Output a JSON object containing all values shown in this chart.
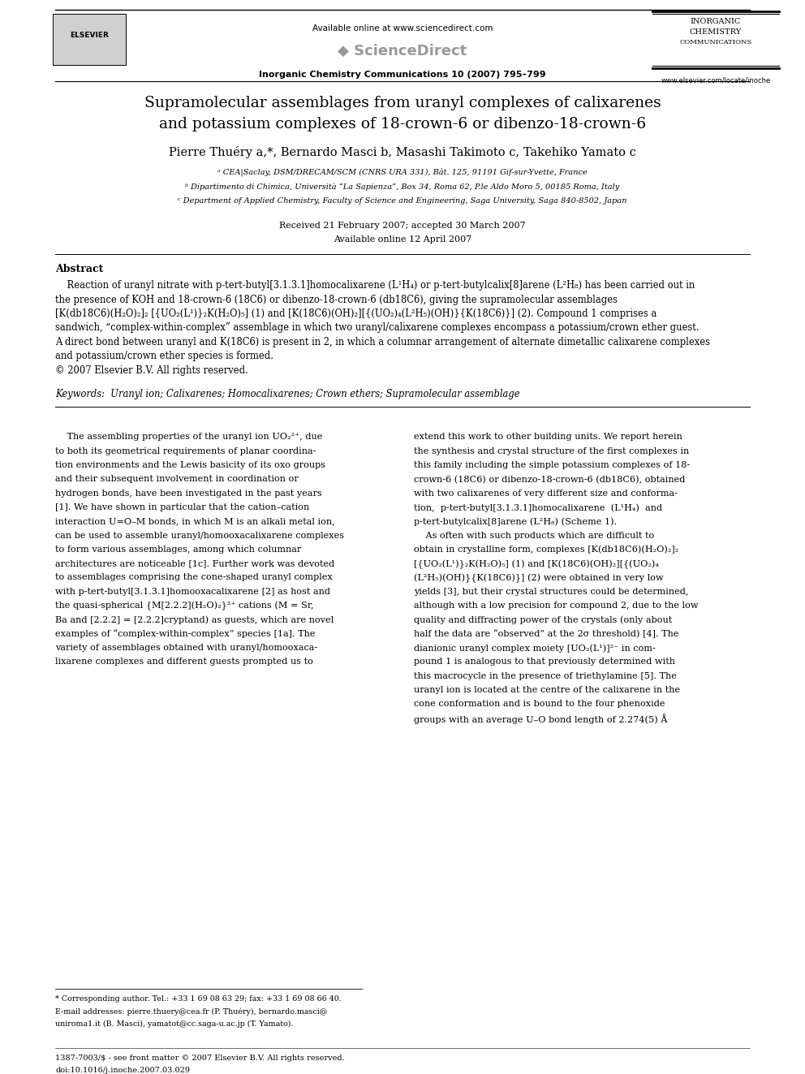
{
  "background_color": "#ffffff",
  "page_width": 9.92,
  "page_height": 13.23,
  "header": {
    "available_online_text": "Available online at www.sciencedirect.com",
    "journal_info": "Inorganic Chemistry Communications 10 (2007) 795–799",
    "journal_name_lines": [
      "INORGANIC",
      "CHEMISTRY",
      "COMMUNICATIONS"
    ],
    "website": "www.elsevier.com/locate/inoche"
  },
  "title": "Supramolecular assemblages from uranyl complexes of calixarenes\nand potassium complexes of 18-crown-6 or dibenzo-18-crown-6",
  "authors": "Pierre Thuéry a,*, Bernardo Masci b, Masashi Takimoto c, Takehiko Yamato c",
  "affiliations": [
    "ᵃ CEA|Saclay, DSM/DRECAM/SCM (CNRS URA 331), Bât. 125, 91191 Gif-sur-Yvette, France",
    "ᵇ Dipartimento di Chimica, Università “La Sapienza”, Box 34, Roma 62, P.le Aldo Moro 5, 00185 Roma, Italy",
    "ᶜ Department of Applied Chemistry, Faculty of Science and Engineering, Saga University, Saga 840-8502, Japan"
  ],
  "received": "Received 21 February 2007; accepted 30 March 2007",
  "available": "Available online 12 April 2007",
  "abstract_title": "Abstract",
  "abstract_text_lines": [
    "    Reaction of uranyl nitrate with p-tert-butyl[3.1.3.1]homocalixarene (L¹H₄) or p-tert-butylcalix[8]arene (L²H₈) has been carried out in",
    "the presence of KOH and 18-crown-6 (18C6) or dibenzo-18-crown-6 (db18C6), giving the supramolecular assemblages",
    "[K(db18C6)(H₂O)₂]₂ [{UO₂(L¹)}₂K(H₂O)₅] (1) and [K(18C6)(OH)₂][{(UO₂)₄(L²H₅)(OH)}{K(18C6)}] (2). Compound 1 comprises a",
    "sandwich, “complex-within-complex” assemblage in which two uranyl/calixarene complexes encompass a potassium/crown ether guest.",
    "A direct bond between uranyl and K(18C6) is present in 2, in which a columnar arrangement of alternate dimetallic calixarene complexes",
    "and potassium/crown ether species is formed.",
    "© 2007 Elsevier B.V. All rights reserved."
  ],
  "keywords": "Keywords:  Uranyl ion; Calixarenes; Homocalixarenes; Crown ethers; Supramolecular assemblage",
  "body_col1_lines": [
    "    The assembling properties of the uranyl ion UO₂²⁺, due",
    "to both its geometrical requirements of planar coordina-",
    "tion environments and the Lewis basicity of its oxo groups",
    "and their subsequent involvement in coordination or",
    "hydrogen bonds, have been investigated in the past years",
    "[1]. We have shown in particular that the cation–cation",
    "interaction U=O–M bonds, in which M is an alkali metal ion,",
    "can be used to assemble uranyl/homooxacalixarene complexes",
    "to form various assemblages, among which columnar",
    "architectures are noticeable [1c]. Further work was devoted",
    "to assemblages comprising the cone-shaped uranyl complex",
    "with p-tert-butyl[3.1.3.1]homooxacalixarene [2] as host and",
    "the quasi-spherical {M[2.2.2](H₂O)₂}²⁺ cations (M = Sr,",
    "Ba and [2.2.2] = [2.2.2]cryptand) as guests, which are novel",
    "examples of “complex-within-complex” species [1a]. The",
    "variety of assemblages obtained with uranyl/homooxaca-",
    "lixarene complexes and different guests prompted us to"
  ],
  "body_col2_lines": [
    "extend this work to other building units. We report herein",
    "the synthesis and crystal structure of the first complexes in",
    "this family including the simple potassium complexes of 18-",
    "crown-6 (18C6) or dibenzo-18-crown-6 (db18C6), obtained",
    "with two calixarenes of very different size and conforma-",
    "tion,  p-tert-butyl[3.1.3.1]homocalixarene  (L¹H₄)  and",
    "p-tert-butylcalix[8]arene (L²H₈) (Scheme 1).",
    "    As often with such products which are difficult to",
    "obtain in crystalline form, complexes [K(db18C6)(H₂O)₂]₂",
    "[{UO₂(L¹)}₂K(H₂O)₅] (1) and [K(18C6)(OH)₂][{(UO₂)₄",
    "(L²H₅)(OH)}{K(18C6)}] (2) were obtained in very low",
    "yields [3], but their crystal structures could be determined,",
    "although with a low precision for compound 2, due to the low",
    "quality and diffracting power of the crystals (only about",
    "half the data are “observed” at the 2σ threshold) [4]. The",
    "dianionic uranyl complex moiety [UO₂(L¹)]²⁻ in com-",
    "pound 1 is analogous to that previously determined with",
    "this macrocycle in the presence of triethylamine [5]. The",
    "uranyl ion is located at the centre of the calixarene in the",
    "cone conformation and is bound to the four phenoxide",
    "groups with an average U–O bond length of 2.274(5) Å"
  ],
  "footnote_lines": [
    "* Corresponding author. Tel.: +33 1 69 08 63 29; fax: +33 1 69 08 66 40.",
    "E-mail addresses: pierre.thuery@cea.fr (P. Thuéry), bernardo.masci@",
    "uniroma1.it (B. Masci), yamatot@cc.saga-u.ac.jp (T. Yamato)."
  ],
  "footer_lines": [
    "1387-7003/$ - see front matter © 2007 Elsevier B.V. All rights reserved.",
    "doi:10.1016/j.inoche.2007.03.029"
  ]
}
